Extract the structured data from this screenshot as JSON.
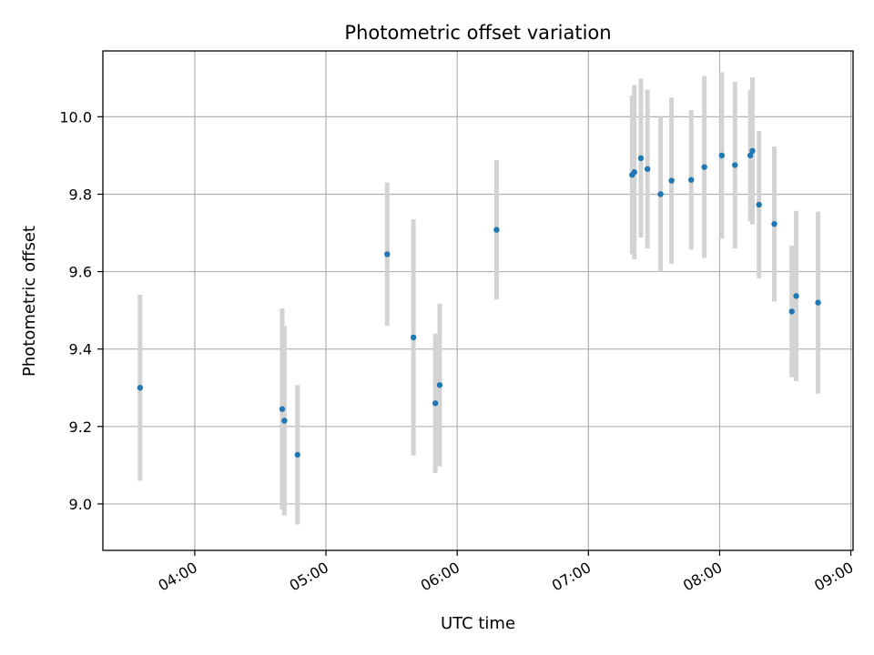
{
  "chart_data": {
    "type": "scatter",
    "title": "Photometric offset variation",
    "xlabel": "UTC time",
    "ylabel": "Photometric offset",
    "x_axis_type": "time",
    "xlim": [
      "03:18",
      "09:01"
    ],
    "ylim": [
      8.88,
      10.17
    ],
    "grid": true,
    "x_ticks": [
      "04:00",
      "05:00",
      "06:00",
      "07:00",
      "08:00",
      "09:00"
    ],
    "y_ticks": [
      "9.0",
      "9.2",
      "9.4",
      "9.6",
      "9.8",
      "10.0"
    ],
    "colors": {
      "points": "#1f77b4",
      "error_bars": "#d3d3d3",
      "grid": "#b0b0b0",
      "axes": "#000000"
    },
    "points": [
      {
        "time": "03:35",
        "y": 9.3,
        "err": 0.24
      },
      {
        "time": "04:40",
        "y": 9.245,
        "err": 0.26
      },
      {
        "time": "04:41",
        "y": 9.215,
        "err": 0.245
      },
      {
        "time": "04:47",
        "y": 9.127,
        "err": 0.18
      },
      {
        "time": "05:28",
        "y": 9.645,
        "err": 0.185
      },
      {
        "time": "05:40",
        "y": 9.43,
        "err": 0.305
      },
      {
        "time": "05:50",
        "y": 9.26,
        "err": 0.18
      },
      {
        "time": "05:52",
        "y": 9.307,
        "err": 0.21
      },
      {
        "time": "06:18",
        "y": 9.708,
        "err": 0.18
      },
      {
        "time": "07:20",
        "y": 9.85,
        "err": 0.205
      },
      {
        "time": "07:21",
        "y": 9.857,
        "err": 0.225
      },
      {
        "time": "07:24",
        "y": 9.893,
        "err": 0.205
      },
      {
        "time": "07:27",
        "y": 9.865,
        "err": 0.205
      },
      {
        "time": "07:33",
        "y": 9.8,
        "err": 0.2
      },
      {
        "time": "07:38",
        "y": 9.835,
        "err": 0.215
      },
      {
        "time": "07:47",
        "y": 9.837,
        "err": 0.18
      },
      {
        "time": "07:53",
        "y": 9.87,
        "err": 0.235
      },
      {
        "time": "08:01",
        "y": 9.9,
        "err": 0.215
      },
      {
        "time": "08:07",
        "y": 9.875,
        "err": 0.215
      },
      {
        "time": "08:14",
        "y": 9.9,
        "err": 0.17
      },
      {
        "time": "08:15",
        "y": 9.912,
        "err": 0.19
      },
      {
        "time": "08:18",
        "y": 9.773,
        "err": 0.19
      },
      {
        "time": "08:25",
        "y": 9.723,
        "err": 0.2
      },
      {
        "time": "08:33",
        "y": 9.497,
        "err": 0.17
      },
      {
        "time": "08:35",
        "y": 9.537,
        "err": 0.22
      },
      {
        "time": "08:45",
        "y": 9.52,
        "err": 0.235
      }
    ]
  }
}
